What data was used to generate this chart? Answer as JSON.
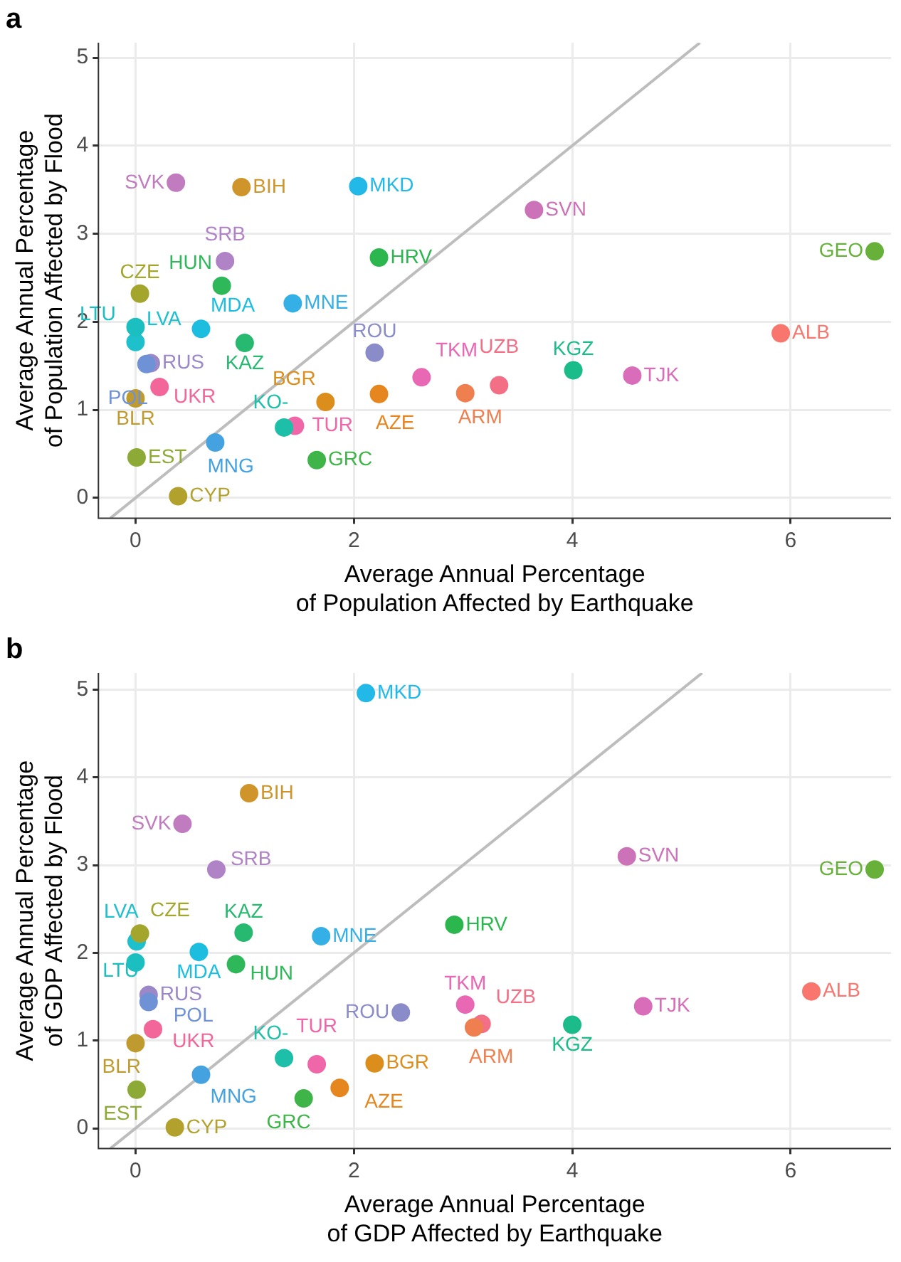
{
  "chart_data": [
    {
      "type": "scatter",
      "title": "a",
      "xlabel": "Average Annual Percentage\nof Population Affected by Earthquake",
      "ylabel": "Average Annual Percentage\nof Population Affected by Flood",
      "xlim": [
        -0.34,
        6.92
      ],
      "ylim": [
        -0.23,
        5.17
      ],
      "xticks": [
        0,
        2,
        4,
        6
      ],
      "yticks": [
        0,
        1,
        2,
        3,
        4,
        5
      ],
      "grid": true,
      "legend": false,
      "marker": "circle",
      "series": [
        {
          "type": "line",
          "color": "#bdbdbd",
          "x": [
            -0.23,
            5.17
          ],
          "values": [
            -0.23,
            5.17
          ],
          "marker": "none"
        },
        {
          "name": "ALB",
          "color": "#f8766d",
          "x": [
            5.91
          ],
          "values": [
            1.87
          ]
        },
        {
          "name": "ARM",
          "color": "#f07f4f",
          "x": [
            3.02
          ],
          "values": [
            1.19
          ]
        },
        {
          "name": "AZE",
          "color": "#e6861f",
          "x": [
            2.23
          ],
          "values": [
            1.18
          ]
        },
        {
          "name": "BGR",
          "color": "#dc8e1c",
          "x": [
            1.74
          ],
          "values": [
            1.09
          ]
        },
        {
          "name": "BIH",
          "color": "#cf952b",
          "x": [
            0.97
          ],
          "values": [
            3.53
          ]
        },
        {
          "name": "BLR",
          "color": "#bf9b2f",
          "x": [
            0.0
          ],
          "values": [
            1.13
          ]
        },
        {
          "name": "CYP",
          "color": "#b2a22d",
          "x": [
            0.39
          ],
          "values": [
            0.02
          ]
        },
        {
          "name": "CZE",
          "color": "#a3a52d",
          "x": [
            0.04
          ],
          "values": [
            2.32
          ]
        },
        {
          "name": "EST",
          "color": "#8daa37",
          "x": [
            0.01
          ],
          "values": [
            0.46
          ]
        },
        {
          "name": "GEO",
          "color": "#67b13b",
          "x": [
            6.77
          ],
          "values": [
            2.8
          ]
        },
        {
          "name": "GRC",
          "color": "#3fb448",
          "x": [
            1.66
          ],
          "values": [
            0.43
          ]
        },
        {
          "name": "HRV",
          "color": "#2cb64e",
          "x": [
            2.23
          ],
          "values": [
            2.73
          ]
        },
        {
          "name": "HUN",
          "color": "#2fb85a",
          "x": [
            0.79
          ],
          "values": [
            2.41
          ]
        },
        {
          "name": "KAZ",
          "color": "#27b96f",
          "x": [
            1.0
          ],
          "values": [
            1.76
          ]
        },
        {
          "name": "KGZ",
          "color": "#1bbb8a",
          "x": [
            4.01
          ],
          "values": [
            1.45
          ]
        },
        {
          "name": "KO-",
          "color": "#1ebfa8",
          "x": [
            1.36
          ],
          "values": [
            0.8
          ]
        },
        {
          "name": "LTU",
          "color": "#1cbfc0",
          "x": [
            0.0
          ],
          "values": [
            1.94
          ]
        },
        {
          "name": "LVA",
          "color": "#1ec0cc",
          "x": [
            0.0
          ],
          "values": [
            1.77
          ]
        },
        {
          "name": "MDA",
          "color": "#1dbde0",
          "x": [
            0.6
          ],
          "values": [
            1.92
          ]
        },
        {
          "name": "MKD",
          "color": "#22b9e8",
          "x": [
            2.04
          ],
          "values": [
            3.54
          ]
        },
        {
          "name": "MNE",
          "color": "#35b0e6",
          "x": [
            1.44
          ],
          "values": [
            2.21
          ]
        },
        {
          "name": "MNG",
          "color": "#45a2e0",
          "x": [
            0.73
          ],
          "values": [
            0.63
          ]
        },
        {
          "name": "POL",
          "color": "#6f92d6",
          "x": [
            0.1
          ],
          "values": [
            1.52
          ]
        },
        {
          "name": "ROU",
          "color": "#8a8cc9",
          "x": [
            2.19
          ],
          "values": [
            1.65
          ]
        },
        {
          "name": "RUS",
          "color": "#9c88c8",
          "x": [
            0.14
          ],
          "values": [
            1.53
          ]
        },
        {
          "name": "SRB",
          "color": "#b082c6",
          "x": [
            0.82
          ],
          "values": [
            2.69
          ]
        },
        {
          "name": "SVK",
          "color": "#c07cbf",
          "x": [
            0.37
          ],
          "values": [
            3.58
          ]
        },
        {
          "name": "SVN",
          "color": "#cc72b8",
          "x": [
            3.65
          ],
          "values": [
            3.27
          ]
        },
        {
          "name": "TJK",
          "color": "#d96db9",
          "x": [
            4.55
          ],
          "values": [
            1.39
          ]
        },
        {
          "name": "TKM",
          "color": "#e868b4",
          "x": [
            2.62
          ],
          "values": [
            1.37
          ]
        },
        {
          "name": "TUR",
          "color": "#ef67a9",
          "x": [
            1.46
          ],
          "values": [
            0.82
          ]
        },
        {
          "name": "UKR",
          "color": "#f2669a",
          "x": [
            0.22
          ],
          "values": [
            1.26
          ]
        },
        {
          "name": "UZB",
          "color": "#f26f85",
          "x": [
            3.33
          ],
          "values": [
            1.28
          ]
        }
      ]
    },
    {
      "type": "scatter",
      "title": "b",
      "xlabel": "Average Annual Percentage\nof GDP Affected by Earthquake",
      "ylabel": "Average Annual Percentage\nof GDP Affected by Flood",
      "xlim": [
        -0.34,
        6.92
      ],
      "ylim": [
        -0.23,
        5.19
      ],
      "xticks": [
        0,
        2,
        4,
        6
      ],
      "yticks": [
        0,
        1,
        2,
        3,
        4,
        5
      ],
      "grid": true,
      "legend": false,
      "marker": "circle",
      "series": [
        {
          "type": "line",
          "color": "#bdbdbd",
          "x": [
            -0.23,
            5.19
          ],
          "values": [
            -0.23,
            5.19
          ],
          "marker": "none"
        },
        {
          "name": "ALB",
          "color": "#f8766d",
          "x": [
            6.19
          ],
          "values": [
            1.56
          ]
        },
        {
          "name": "ARM",
          "color": "#f07f4f",
          "x": [
            3.1
          ],
          "values": [
            1.15
          ]
        },
        {
          "name": "AZE",
          "color": "#e6861f",
          "x": [
            1.87
          ],
          "values": [
            0.46
          ]
        },
        {
          "name": "BGR",
          "color": "#dc8e1c",
          "x": [
            2.19
          ],
          "values": [
            0.74
          ]
        },
        {
          "name": "BIH",
          "color": "#cf952b",
          "x": [
            1.04
          ],
          "values": [
            3.82
          ]
        },
        {
          "name": "BLR",
          "color": "#bf9b2f",
          "x": [
            0.0
          ],
          "values": [
            0.97
          ]
        },
        {
          "name": "CYP",
          "color": "#b2a22d",
          "x": [
            0.36
          ],
          "values": [
            0.01
          ]
        },
        {
          "name": "CZE",
          "color": "#a3a52d",
          "x": [
            0.04
          ],
          "values": [
            2.22
          ]
        },
        {
          "name": "EST",
          "color": "#8daa37",
          "x": [
            0.01
          ],
          "values": [
            0.44
          ]
        },
        {
          "name": "GEO",
          "color": "#67b13b",
          "x": [
            6.77
          ],
          "values": [
            2.95
          ]
        },
        {
          "name": "GRC",
          "color": "#3fb448",
          "x": [
            1.54
          ],
          "values": [
            0.34
          ]
        },
        {
          "name": "HRV",
          "color": "#2cb64e",
          "x": [
            2.92
          ],
          "values": [
            2.32
          ]
        },
        {
          "name": "HUN",
          "color": "#2fb85a",
          "x": [
            0.92
          ],
          "values": [
            1.87
          ]
        },
        {
          "name": "KAZ",
          "color": "#27b96f",
          "x": [
            0.99
          ],
          "values": [
            2.23
          ]
        },
        {
          "name": "KGZ",
          "color": "#1bbb8a",
          "x": [
            4.0
          ],
          "values": [
            1.18
          ]
        },
        {
          "name": "KO-",
          "color": "#1ebfa8",
          "x": [
            1.36
          ],
          "values": [
            0.8
          ]
        },
        {
          "name": "LTU",
          "color": "#1cbfc0",
          "x": [
            0.0
          ],
          "values": [
            1.89
          ]
        },
        {
          "name": "LVA",
          "color": "#1ec0cc",
          "x": [
            0.01
          ],
          "values": [
            2.13
          ]
        },
        {
          "name": "MDA",
          "color": "#1dbde0",
          "x": [
            0.58
          ],
          "values": [
            2.01
          ]
        },
        {
          "name": "MKD",
          "color": "#22b9e8",
          "x": [
            2.11
          ],
          "values": [
            4.96
          ]
        },
        {
          "name": "MNE",
          "color": "#35b0e6",
          "x": [
            1.7
          ],
          "values": [
            2.19
          ]
        },
        {
          "name": "MNG",
          "color": "#45a2e0",
          "x": [
            0.6
          ],
          "values": [
            0.61
          ]
        },
        {
          "name": "POL",
          "color": "#6f92d6",
          "x": [
            0.12
          ],
          "values": [
            1.44
          ]
        },
        {
          "name": "ROU",
          "color": "#8a8cc9",
          "x": [
            2.43
          ],
          "values": [
            1.32
          ]
        },
        {
          "name": "RUS",
          "color": "#9c88c8",
          "x": [
            0.12
          ],
          "values": [
            1.52
          ]
        },
        {
          "name": "SRB",
          "color": "#b082c6",
          "x": [
            0.74
          ],
          "values": [
            2.95
          ]
        },
        {
          "name": "SVK",
          "color": "#c07cbf",
          "x": [
            0.43
          ],
          "values": [
            3.47
          ]
        },
        {
          "name": "SVN",
          "color": "#cc72b8",
          "x": [
            4.5
          ],
          "values": [
            3.1
          ]
        },
        {
          "name": "TJK",
          "color": "#d96db9",
          "x": [
            4.65
          ],
          "values": [
            1.39
          ]
        },
        {
          "name": "TKM",
          "color": "#e868b4",
          "x": [
            3.02
          ],
          "values": [
            1.41
          ]
        },
        {
          "name": "TUR",
          "color": "#ef67a9",
          "x": [
            1.66
          ],
          "values": [
            0.73
          ]
        },
        {
          "name": "UKR",
          "color": "#f2669a",
          "x": [
            0.16
          ],
          "values": [
            1.13
          ]
        },
        {
          "name": "UZB",
          "color": "#f26f85",
          "x": [
            3.17
          ],
          "values": [
            1.19
          ]
        }
      ]
    }
  ]
}
